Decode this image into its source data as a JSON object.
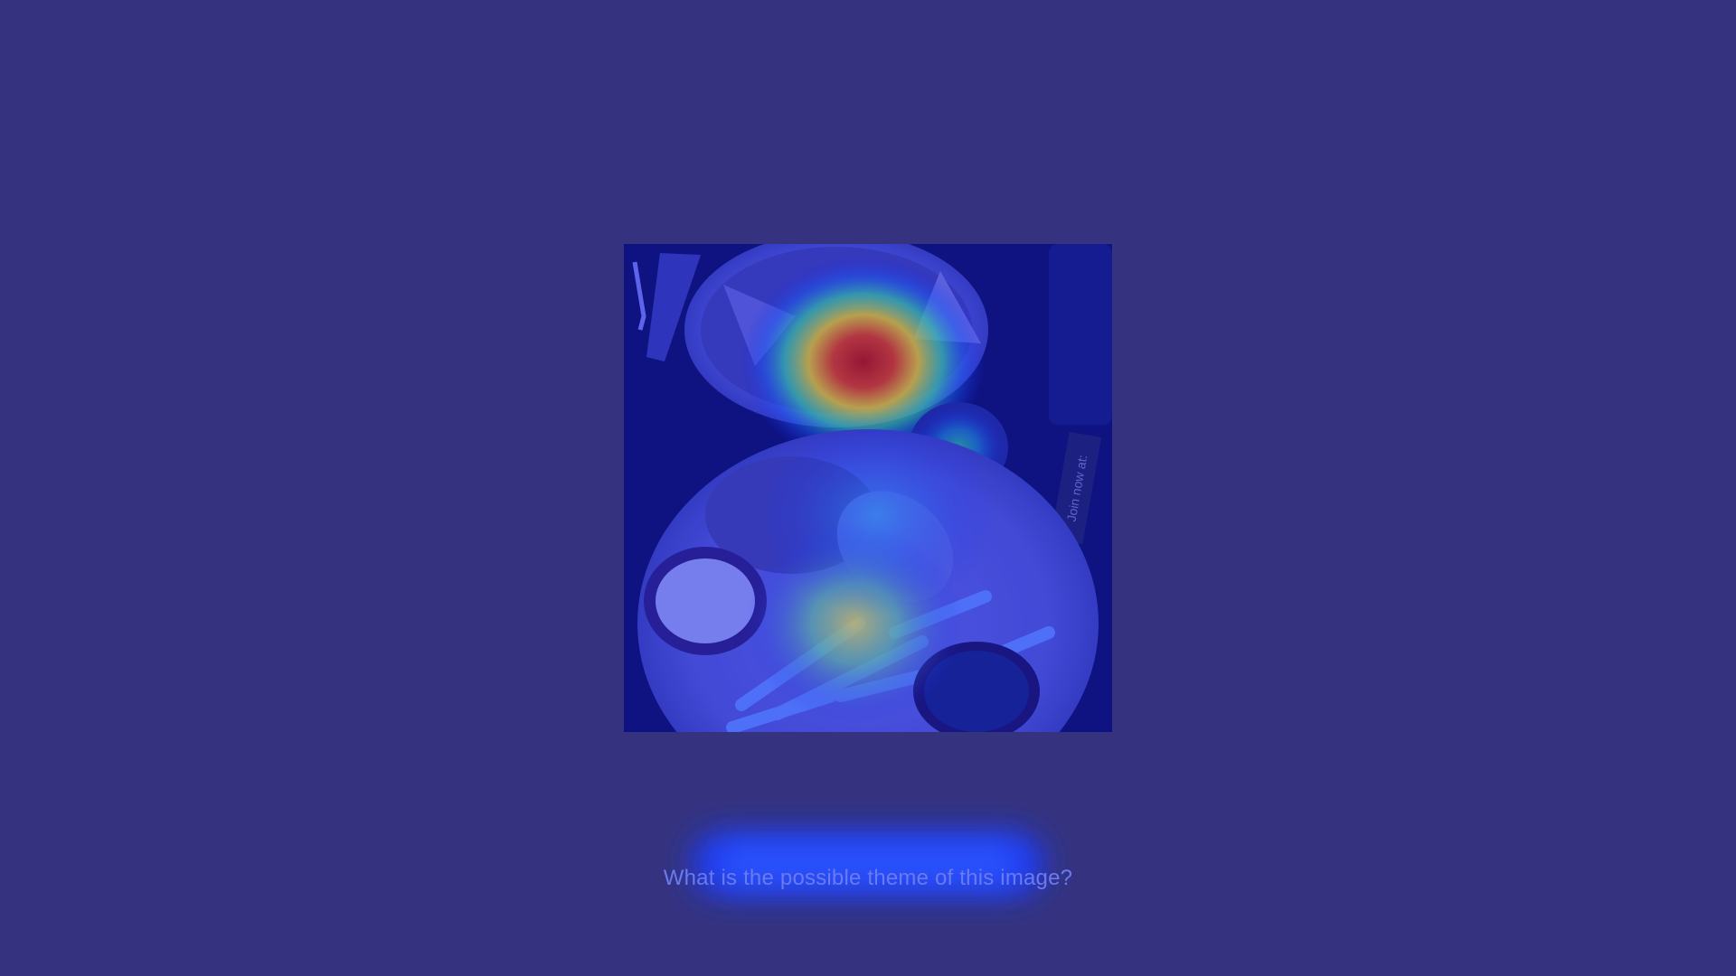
{
  "image": {
    "subject": "food-photo-with-attention-heatmap",
    "sign_text": "Join now at:"
  },
  "question": {
    "text": "What is the possible theme of this image?"
  },
  "colors": {
    "background": "#353380",
    "question_text": "#6a7bf0",
    "heatmap_hot": "#d81b0a",
    "heatmap_warm": "#f5e21a",
    "heatmap_cool": "#1a56ff"
  }
}
